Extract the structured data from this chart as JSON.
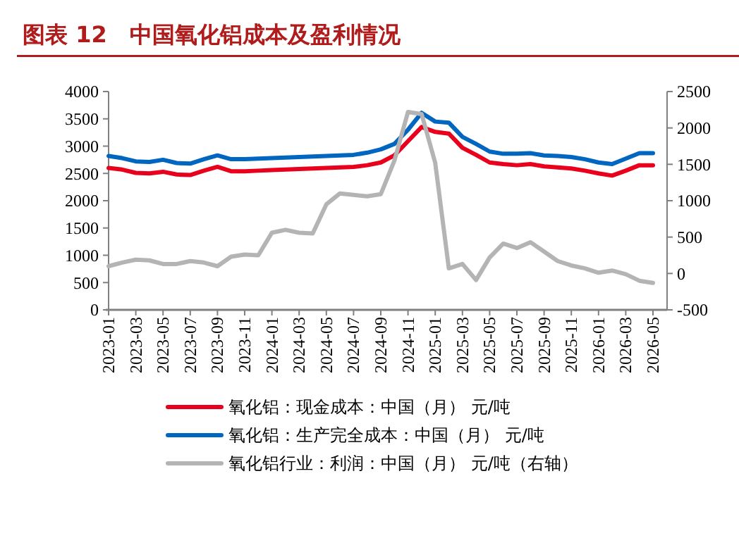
{
  "chart_data": {
    "type": "line",
    "title": "图表 12　中国氧化铝成本及盈利情况",
    "categories": [
      "2023-01",
      null,
      "2023-03",
      null,
      "2023-05",
      null,
      "2023-07",
      null,
      "2023-09",
      null,
      "2023-11",
      null,
      "2024-01",
      null,
      "2024-03",
      null,
      "2024-05",
      null,
      "2024-07",
      null,
      "2024-09",
      null,
      "2024-11",
      null,
      "2025-01",
      null,
      "2025-03",
      null,
      "2025-05",
      null,
      "2025-07",
      null,
      "2025-09",
      null,
      "2025-11",
      null,
      "2026-01",
      null,
      "2026-03",
      null,
      "2026-05"
    ],
    "ylim": [
      0,
      4000
    ],
    "yticks": [
      0,
      500,
      1000,
      1500,
      2000,
      2500,
      3000,
      3500,
      4000
    ],
    "y2lim": [
      -500,
      2500
    ],
    "y2ticks": [
      -500,
      0,
      500,
      1000,
      1500,
      2000,
      2500
    ],
    "legend": "bottom",
    "grid": false,
    "marker": "none",
    "line_style": "solid",
    "series": [
      {
        "name": "氧化铝：现金成本：中国（月）  元/吨",
        "color": "#e8001c",
        "values": [
          2600,
          2570,
          2510,
          2500,
          2530,
          2480,
          2470,
          2550,
          2620,
          2540,
          2540,
          2550,
          2560,
          2570,
          2580,
          2590,
          2600,
          2610,
          2620,
          2650,
          2700,
          2830,
          3090,
          3350,
          3260,
          3230,
          2970,
          2840,
          2700,
          2670,
          2650,
          2670,
          2630,
          2610,
          2590,
          2550,
          2500,
          2460,
          2550,
          2650,
          2650
        ]
      },
      {
        "name": "氧化铝：生产完全成本：中国（月）  元/吨",
        "color": "#0066c0",
        "values": [
          2820,
          2780,
          2720,
          2710,
          2750,
          2690,
          2680,
          2760,
          2830,
          2760,
          2760,
          2770,
          2780,
          2790,
          2800,
          2810,
          2820,
          2830,
          2840,
          2880,
          2940,
          3040,
          3300,
          3610,
          3450,
          3430,
          3170,
          3040,
          2900,
          2860,
          2860,
          2870,
          2830,
          2820,
          2800,
          2760,
          2700,
          2670,
          2770,
          2870,
          2870
        ]
      },
      {
        "name": "氧化铝行业：利润：中国（月）  元/吨（右轴）",
        "color": "#b4b4b4",
        "axis": "y2",
        "values": [
          100,
          150,
          190,
          180,
          130,
          130,
          170,
          150,
          100,
          230,
          260,
          250,
          560,
          600,
          560,
          550,
          950,
          1100,
          1080,
          1060,
          1090,
          1550,
          2220,
          2190,
          1520,
          70,
          130,
          -90,
          220,
          410,
          350,
          430,
          300,
          170,
          110,
          70,
          10,
          40,
          -10,
          -100,
          -130
        ]
      }
    ]
  }
}
